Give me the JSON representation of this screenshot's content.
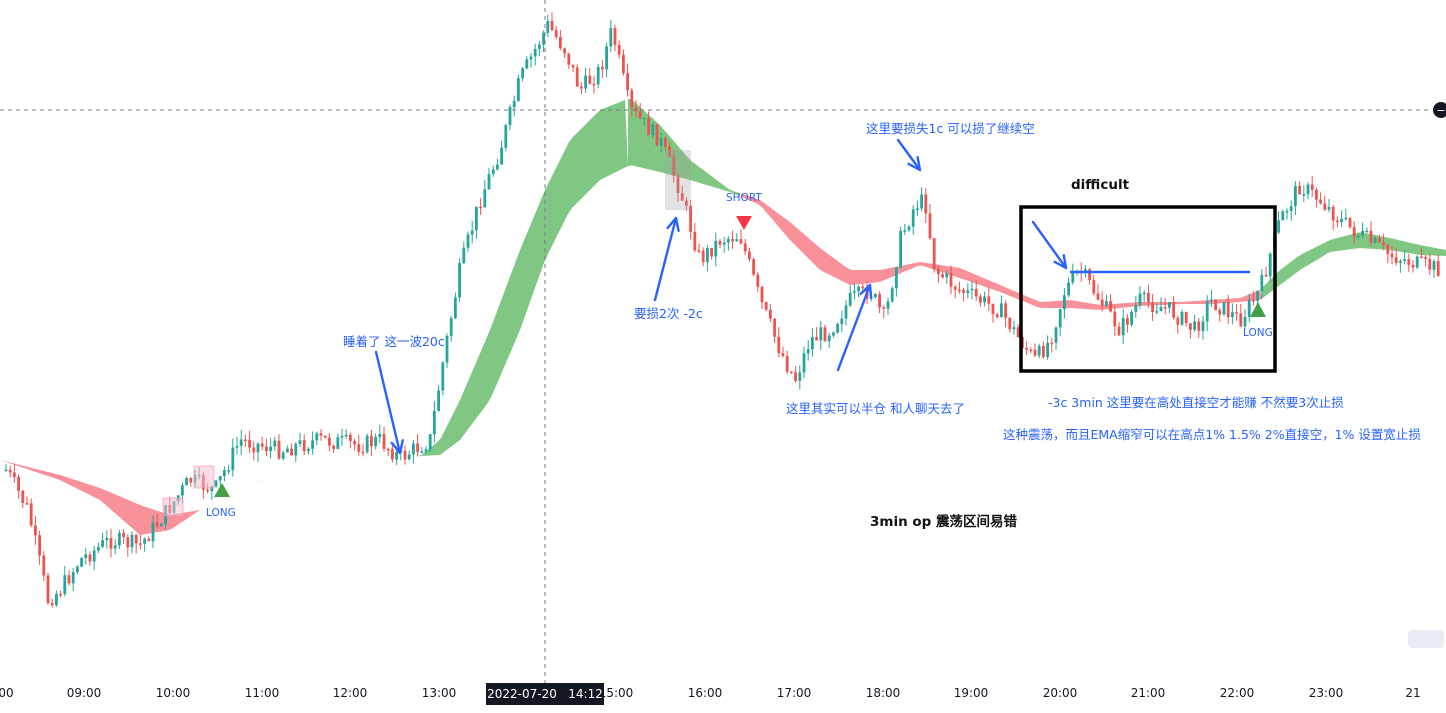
{
  "chart_data": {
    "type": "candlestick",
    "symbol": "",
    "timeframe": "3min",
    "x_axis_ticks": [
      "00",
      "09:00",
      "10:00",
      "11:00",
      "12:00",
      "13:00",
      "15:00",
      "16:00",
      "17:00",
      "18:00",
      "19:00",
      "20:00",
      "21:00",
      "22:00",
      "23:00",
      "21"
    ],
    "crosshair_label": "2022-07-20   14:12",
    "price_scale": "hidden",
    "grid": "off",
    "ema_ribbon": {
      "bullish_color": "#4caf50",
      "bearish_color": "#f23645",
      "description": "EMA cloud between fast and slow EMA"
    },
    "candle_colors": {
      "up": "#26a69a",
      "down": "#ef5350"
    },
    "signals": [
      {
        "type": "LONG",
        "time": "10:32",
        "label": "LONG"
      },
      {
        "type": "SHORT",
        "time": "16:24",
        "label": "SHORT"
      },
      {
        "type": "LONG",
        "time": "22:15",
        "label": "LONG"
      }
    ],
    "annotations": [
      {
        "text": "睡着了 这一波20c"
      },
      {
        "text": "要损2次 -2c"
      },
      {
        "text": "这里其实可以半仓 和人聊天去了"
      },
      {
        "text": "这里要损失1c 可以损了继续空"
      },
      {
        "text": "difficult"
      },
      {
        "text": "-3c  3min 这里要在高处直接空才能赚 不然要3次止损"
      },
      {
        "text": "这种震荡，而且EMA缩窄可以在高点1% 1.5% 2%直接空，1% 设置宽止损"
      },
      {
        "text": "3min op 震荡区间易错"
      }
    ]
  },
  "colors": {
    "annotation": "#2962ff",
    "box": "#000000",
    "long_marker": "#43a047",
    "short_marker": "#f23645"
  }
}
